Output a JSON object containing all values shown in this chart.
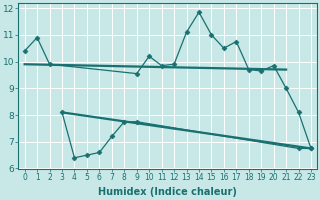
{
  "xlabel": "Humidex (Indice chaleur)",
  "background_color": "#c8e8e8",
  "line_color": "#1a7070",
  "xlim": [
    -0.5,
    23.5
  ],
  "ylim": [
    6,
    12.2
  ],
  "yticks": [
    6,
    7,
    8,
    9,
    10,
    11,
    12
  ],
  "xticks": [
    0,
    1,
    2,
    3,
    4,
    5,
    6,
    7,
    8,
    9,
    10,
    11,
    12,
    13,
    14,
    15,
    16,
    17,
    18,
    19,
    20,
    21,
    22,
    23
  ],
  "line1_x": [
    0,
    1,
    2,
    9,
    10,
    11,
    12,
    13,
    14,
    15,
    16,
    17,
    18,
    19,
    20,
    21,
    22,
    23
  ],
  "line1_y": [
    10.4,
    10.9,
    9.9,
    9.55,
    10.2,
    9.85,
    9.9,
    11.1,
    11.85,
    11.0,
    10.5,
    10.75,
    9.7,
    9.65,
    9.85,
    9.0,
    8.1,
    6.75
  ],
  "line2_x": [
    0,
    21
  ],
  "line2_y": [
    9.9,
    9.7
  ],
  "line3_x": [
    3,
    4,
    5,
    6,
    7,
    8,
    9,
    22,
    23
  ],
  "line3_y": [
    8.1,
    6.4,
    6.5,
    6.6,
    7.2,
    7.75,
    7.75,
    6.75,
    6.75
  ],
  "line4_x": [
    3,
    23
  ],
  "line4_y": [
    8.1,
    6.75
  ]
}
